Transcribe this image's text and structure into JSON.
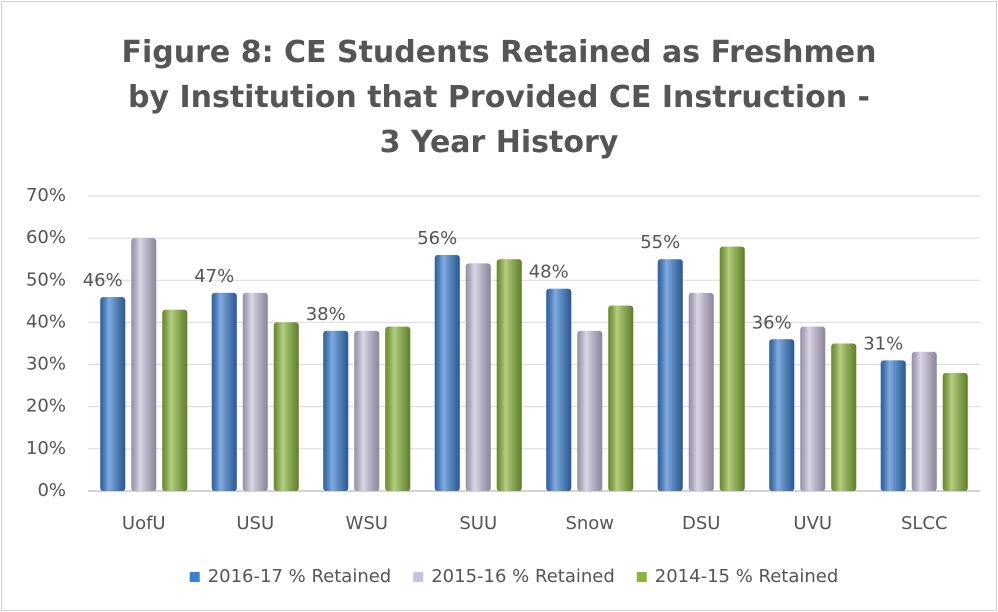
{
  "chart_data": {
    "type": "bar",
    "title": "Figure 8: CE Students Retained as Freshmen by Institution that Provided CE Instruction - 3 Year History",
    "categories": [
      "UofU",
      "USU",
      "WSU",
      "SUU",
      "Snow",
      "DSU",
      "UVU",
      "SLCC"
    ],
    "series": [
      {
        "name": "2016-17 % Retained",
        "color": "#3b7fd1",
        "values": [
          46,
          47,
          38,
          56,
          48,
          55,
          36,
          31
        ],
        "value_labels": [
          "46%",
          "47%",
          "38%",
          "56%",
          "48%",
          "55%",
          "36%",
          "31%"
        ]
      },
      {
        "name": "2015-16 % Retained",
        "color": "#c8c0dc",
        "values": [
          60,
          47,
          38,
          54,
          38,
          47,
          39,
          33
        ]
      },
      {
        "name": "2014-15 % Retained",
        "color": "#8bb63b",
        "values": [
          43,
          40,
          39,
          55,
          44,
          58,
          35,
          28
        ]
      }
    ],
    "ylim": [
      0,
      70
    ],
    "yticks": [
      {
        "value": 0,
        "label": "0%"
      },
      {
        "value": 10,
        "label": "10%"
      },
      {
        "value": 20,
        "label": "20%"
      },
      {
        "value": 30,
        "label": "30%"
      },
      {
        "value": 40,
        "label": "40%"
      },
      {
        "value": 50,
        "label": "50%"
      },
      {
        "value": 60,
        "label": "60%"
      },
      {
        "value": 70,
        "label": "70%"
      }
    ],
    "grid": true,
    "legend": "bottom"
  }
}
